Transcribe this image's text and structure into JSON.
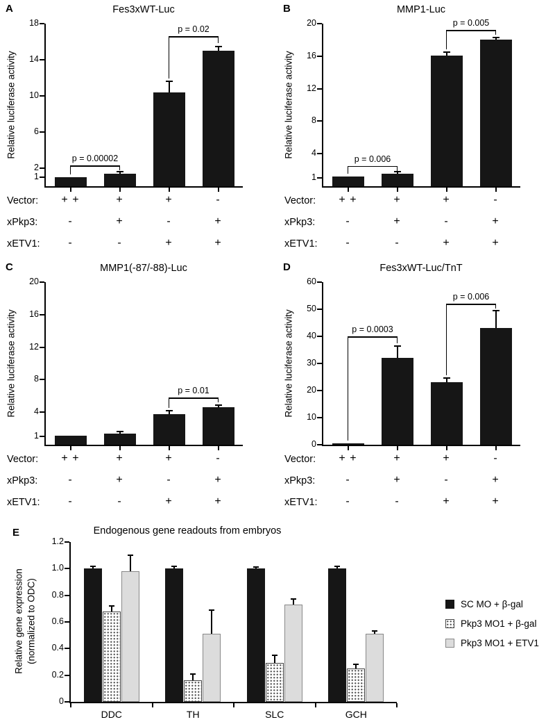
{
  "figure": {
    "background": "#ffffff"
  },
  "colors": {
    "bar_fill": "#161616",
    "gray_fill": "#dcdcdc",
    "axis": "#000000"
  },
  "condition_labels": [
    "Vector:",
    "xPkp3:",
    "xETV1:"
  ],
  "chart_data": [
    {
      "id": "A",
      "type": "bar",
      "title": "Fes3xWT-Luc",
      "ylabel": "Relative luciferase activity",
      "ylim": [
        0,
        18
      ],
      "yticks": [
        1,
        2,
        6,
        10,
        14,
        18
      ],
      "values": [
        1.0,
        1.4,
        10.4,
        15.0
      ],
      "errors": [
        0,
        0.2,
        1.2,
        0.5
      ],
      "brackets": [
        {
          "from": 0,
          "to": 1,
          "y": 2.3,
          "label": "p = 0.00002"
        },
        {
          "from": 2,
          "to": 3,
          "y": 16.6,
          "label": "p = 0.02"
        }
      ],
      "conditions": {
        "rows": [
          [
            "+ +",
            "+",
            "+",
            "-"
          ],
          [
            "-",
            "+",
            "-",
            "+"
          ],
          [
            "-",
            "-",
            "+",
            "+"
          ]
        ]
      }
    },
    {
      "id": "B",
      "type": "bar",
      "title": "MMP1-Luc",
      "ylabel": "Relative luciferase activity",
      "ylim": [
        0,
        20
      ],
      "yticks": [
        1,
        4,
        8,
        12,
        16,
        20
      ],
      "values": [
        1.2,
        1.5,
        16.1,
        18.0
      ],
      "errors": [
        0,
        0.3,
        0.4,
        0.3
      ],
      "brackets": [
        {
          "from": 0,
          "to": 1,
          "y": 2.5,
          "label": "p = 0.006"
        },
        {
          "from": 2,
          "to": 3,
          "y": 19.2,
          "label": "p = 0.005"
        }
      ],
      "conditions": {
        "rows": [
          [
            "+ +",
            "+",
            "+",
            "-"
          ],
          [
            "-",
            "+",
            "-",
            "+"
          ],
          [
            "-",
            "-",
            "+",
            "+"
          ]
        ]
      }
    },
    {
      "id": "C",
      "type": "bar",
      "title": "MMP1(-87/-88)-Luc",
      "ylabel": "Relative luciferase activity",
      "ylim": [
        0,
        20
      ],
      "yticks": [
        1,
        4,
        8,
        12,
        16,
        20
      ],
      "values": [
        1.1,
        1.4,
        3.8,
        4.6
      ],
      "errors": [
        0,
        0.2,
        0.35,
        0.3
      ],
      "brackets": [
        {
          "from": 2,
          "to": 3,
          "y": 5.8,
          "label": "p = 0.01"
        }
      ],
      "conditions": {
        "rows": [
          [
            "+ +",
            "+",
            "+",
            "-"
          ],
          [
            "-",
            "+",
            "-",
            "+"
          ],
          [
            "-",
            "-",
            "+",
            "+"
          ]
        ]
      }
    },
    {
      "id": "D",
      "type": "bar",
      "title": "Fes3xWT-Luc/TnT",
      "ylabel": "Relative luciferase activity",
      "ylim": [
        0,
        60
      ],
      "yticks": [
        0,
        10,
        20,
        30,
        40,
        50,
        60
      ],
      "values": [
        0.6,
        32,
        23,
        43
      ],
      "errors": [
        0,
        4.5,
        1.5,
        6.5
      ],
      "brackets": [
        {
          "from": 0,
          "to": 1,
          "y": 40,
          "label": "p = 0.0003"
        },
        {
          "from": 2,
          "to": 3,
          "y": 52,
          "label": "p = 0.006"
        }
      ],
      "conditions": {
        "rows": [
          [
            "+ +",
            "+",
            "+",
            "-"
          ],
          [
            "-",
            "+",
            "-",
            "+"
          ],
          [
            "-",
            "-",
            "+",
            "+"
          ]
        ]
      }
    },
    {
      "id": "E",
      "type": "grouped-bar",
      "title": "Endogenous gene readouts from embryos",
      "ylabel_lines": [
        "Relative gene expression",
        "(normalized to ODC)"
      ],
      "ylim": [
        0,
        1.2
      ],
      "yticks": [
        0,
        0.2,
        0.4,
        0.6,
        0.8,
        1.0,
        1.2
      ],
      "ytick_labels": [
        "0",
        "0.2",
        "0.4",
        "0.6",
        "0.8",
        "1.0",
        "1.2"
      ],
      "categories": [
        "DDC",
        "TH",
        "SLC",
        "GCH"
      ],
      "series": [
        {
          "name": "SC MO + β-gal",
          "style": "black",
          "values": [
            1.0,
            1.0,
            1.0,
            1.0
          ],
          "errors": [
            0.02,
            0.02,
            0.01,
            0.02
          ]
        },
        {
          "name": "Pkp3 MO1 + β-gal",
          "style": "stipple",
          "values": [
            0.68,
            0.16,
            0.29,
            0.25
          ],
          "errors": [
            0.04,
            0.05,
            0.06,
            0.03
          ]
        },
        {
          "name": "Pkp3 MO1 + ETV1",
          "style": "gray",
          "values": [
            0.98,
            0.51,
            0.73,
            0.51
          ],
          "errors": [
            0.12,
            0.18,
            0.04,
            0.02
          ]
        }
      ],
      "legend_position": "right"
    }
  ]
}
